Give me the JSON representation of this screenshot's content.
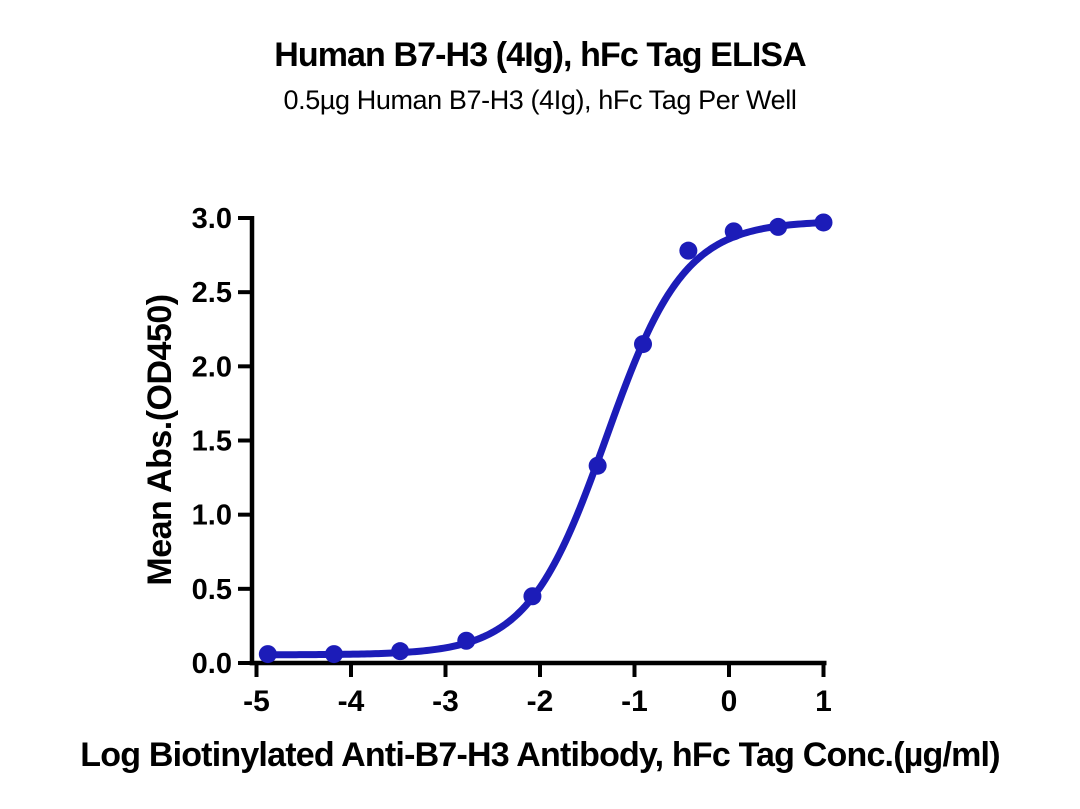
{
  "figure": {
    "title": "Human B7-H3 (4Ig), hFc Tag ELISA",
    "subtitle": "0.5µg Human B7-H3 (4Ig), hFc Tag Per Well",
    "xlabel": "Log Biotinylated Anti-B7-H3 Antibody, hFc Tag Conc.(µg/ml)",
    "ylabel": "Mean Abs.(OD450)"
  },
  "chart_data": {
    "type": "scatter",
    "title": "Human B7-H3 (4Ig), hFc Tag ELISA",
    "subtitle": "0.5µg Human B7-H3 (4Ig), hFc Tag Per Well",
    "xlabel": "Log Biotinylated Anti-B7-H3 Antibody, hFc Tag Conc.(µg/ml)",
    "ylabel": "Mean Abs.(OD450)",
    "x": [
      -4.88,
      -4.18,
      -3.48,
      -2.78,
      -2.08,
      -1.39,
      -0.91,
      -0.43,
      0.05,
      0.52,
      1.0
    ],
    "y": [
      0.06,
      0.06,
      0.08,
      0.15,
      0.45,
      1.33,
      2.15,
      2.78,
      2.91,
      2.94,
      2.97
    ],
    "xlim": [
      -5,
      1
    ],
    "ylim": [
      0,
      3
    ],
    "x_ticks": [
      -5,
      -4,
      -3,
      -2,
      -1,
      0,
      1
    ],
    "x_tick_labels": [
      "-5",
      "-4",
      "-3",
      "-2",
      "-1",
      "0",
      "1"
    ],
    "y_ticks": [
      0,
      0.5,
      1.0,
      1.5,
      2.0,
      2.5,
      3.0
    ],
    "y_tick_labels": [
      "0.0",
      "0.5",
      "1.0",
      "1.5",
      "2.0",
      "2.5",
      "3.0"
    ],
    "grid": false,
    "legend": false,
    "fit_curve": {
      "model": "4PL",
      "bottom": 0.055,
      "top": 2.98,
      "logEC50": -1.3,
      "hill": 1.05
    },
    "colors": {
      "marker": "#1C1CB8",
      "line": "#1C1CB8",
      "axis": "#000000",
      "text": "#000000",
      "background": "#FFFFFF"
    }
  }
}
